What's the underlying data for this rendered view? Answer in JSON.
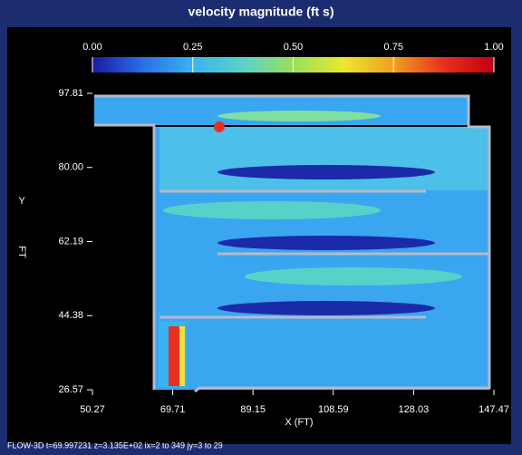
{
  "chart_data": {
    "type": "contour",
    "title": "velocity magnitude (ft s)",
    "colorbar": {
      "colors": [
        "#1a1aa0",
        "#2a6ee8",
        "#3ab4f0",
        "#58d2c8",
        "#9be05a",
        "#e8e830",
        "#f0a020",
        "#e83020",
        "#c00010"
      ],
      "lim": [
        0,
        1
      ],
      "ticks": [
        {
          "value": 0,
          "label": "0.00"
        },
        {
          "value": 0.25,
          "label": "0.25"
        },
        {
          "value": 0.5,
          "label": "0.50"
        },
        {
          "value": 0.75,
          "label": "0.75"
        },
        {
          "value": 1,
          "label": "1.00"
        }
      ]
    },
    "xlabel": "X  (FT)",
    "ylabel": "Y",
    "ylabel_unit": "FT",
    "xlim": [
      50.27,
      147.47
    ],
    "xticks": [
      50.27,
      69.71,
      89.15,
      108.59,
      128.03,
      147.47
    ],
    "ylim": [
      26.57,
      97.81
    ],
    "yticks": [
      26.57,
      44.38,
      62.19,
      {
        "value": 80,
        "label": "80.00"
      },
      97.81
    ],
    "footer": "FLOW-3D  t=69.997231  z=3.135E+02  ix=2 to 349  jy=3 to 29"
  }
}
